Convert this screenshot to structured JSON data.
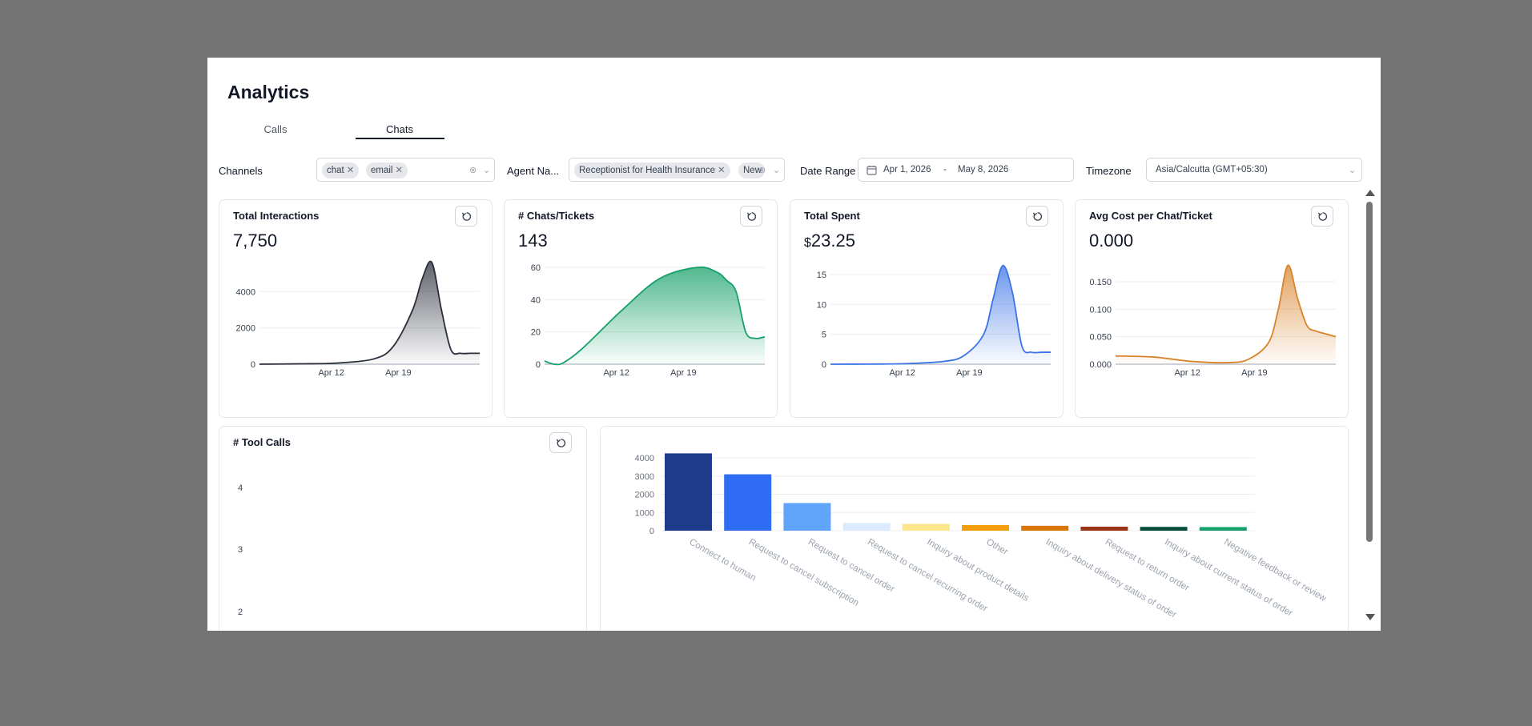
{
  "page": {
    "title": "Analytics"
  },
  "tabs": [
    {
      "label": "Calls"
    },
    {
      "label": "Chats"
    }
  ],
  "filters": {
    "channels": {
      "label": "Channels",
      "chips": [
        "chat",
        "email"
      ]
    },
    "agent": {
      "label": "Agent Na...",
      "chips": [
        "Receptionist for Health Insurance",
        "New"
      ]
    },
    "date_range": {
      "label": "Date Range",
      "start": "Apr 1, 2026",
      "separator": "-",
      "end": "May 8, 2026"
    },
    "timezone": {
      "label": "Timezone",
      "value": "Asia/Calcutta (GMT+05:30)"
    }
  },
  "cards": [
    {
      "title": "Total Interactions",
      "value": "7,750"
    },
    {
      "title": "# Chats/Tickets",
      "value": "143"
    },
    {
      "title": "Total Spent",
      "currency": "$",
      "value": "23.25"
    },
    {
      "title": "Avg Cost per Chat/Ticket",
      "value": "0.000"
    }
  ],
  "tool_calls": {
    "title": "# Tool Calls"
  },
  "colors": {
    "interactions": "#2a2e3a",
    "chats": "#16a06a",
    "spent": "#3b73e6",
    "cost": "#d9832a"
  },
  "chart_data": [
    {
      "type": "area",
      "x_ticks": [
        "Apr 12",
        "Apr 19"
      ],
      "y_ticks": [
        0,
        2000,
        4000
      ],
      "ylim": [
        0,
        5600
      ],
      "x": [
        0,
        4,
        8,
        12,
        14,
        16,
        17,
        18,
        19,
        20,
        21,
        22,
        23
      ],
      "values": [
        0,
        20,
        60,
        300,
        1000,
        3000,
        4700,
        5600,
        3000,
        800,
        600,
        600,
        600
      ]
    },
    {
      "type": "area",
      "x_ticks": [
        "Apr 12",
        "Apr 19"
      ],
      "y_ticks": [
        0,
        20,
        40,
        60
      ],
      "ylim": [
        0,
        63
      ],
      "x": [
        0,
        1,
        2,
        4,
        8,
        12,
        16,
        18,
        19,
        20,
        21,
        22,
        23
      ],
      "values": [
        2,
        0,
        1,
        10,
        33,
        53,
        60,
        57,
        52,
        45,
        20,
        16,
        17
      ]
    },
    {
      "type": "area",
      "x_ticks": [
        "Apr 12",
        "Apr 19"
      ],
      "y_ticks": [
        0,
        5,
        10,
        15
      ],
      "ylim": [
        0,
        17
      ],
      "x": [
        0,
        4,
        8,
        12,
        14,
        16,
        17,
        18,
        19,
        20,
        21,
        22,
        23
      ],
      "values": [
        0,
        0.02,
        0.1,
        0.5,
        1.5,
        5,
        11,
        16.5,
        12,
        3,
        2,
        2,
        2
      ]
    },
    {
      "type": "area",
      "x_ticks": [
        "Apr 12",
        "Apr 19"
      ],
      "y_ticks": [
        0.0,
        0.05,
        0.1,
        0.15
      ],
      "y_tick_labels": [
        "0.000",
        "0.050",
        "0.100",
        "0.150"
      ],
      "ylim": [
        0,
        0.185
      ],
      "x": [
        0,
        4,
        8,
        12,
        14,
        16,
        17,
        18,
        19,
        20,
        21,
        22,
        23
      ],
      "values": [
        0.015,
        0.013,
        0.005,
        0.003,
        0.01,
        0.04,
        0.1,
        0.18,
        0.12,
        0.07,
        0.06,
        0.055,
        0.05
      ]
    },
    {
      "type": "bar",
      "categories": [
        "Connect to human",
        "Request to cancel subscription",
        "Request to cancel order",
        "Request to cancel recurring order",
        "Inquiry about product details",
        "Other",
        "Inquiry about delivery status of order",
        "Request to return order",
        "Inquiry about current status of order",
        "Negative feedback or review"
      ],
      "values": [
        4250,
        3100,
        1520,
        420,
        370,
        310,
        270,
        220,
        210,
        200
      ],
      "colors": [
        "#1e3a8a",
        "#2f6ef4",
        "#60a5fa",
        "#dbeafe",
        "#fde68a",
        "#f59e0b",
        "#d97706",
        "#9a3412",
        "#064e3b",
        "#16a06a"
      ],
      "y_ticks": [
        0,
        1000,
        2000,
        3000,
        4000
      ],
      "ylim": [
        0,
        4400
      ]
    },
    {
      "type": "line",
      "title": "# Tool Calls",
      "y_ticks": [
        2,
        3,
        4
      ]
    }
  ]
}
